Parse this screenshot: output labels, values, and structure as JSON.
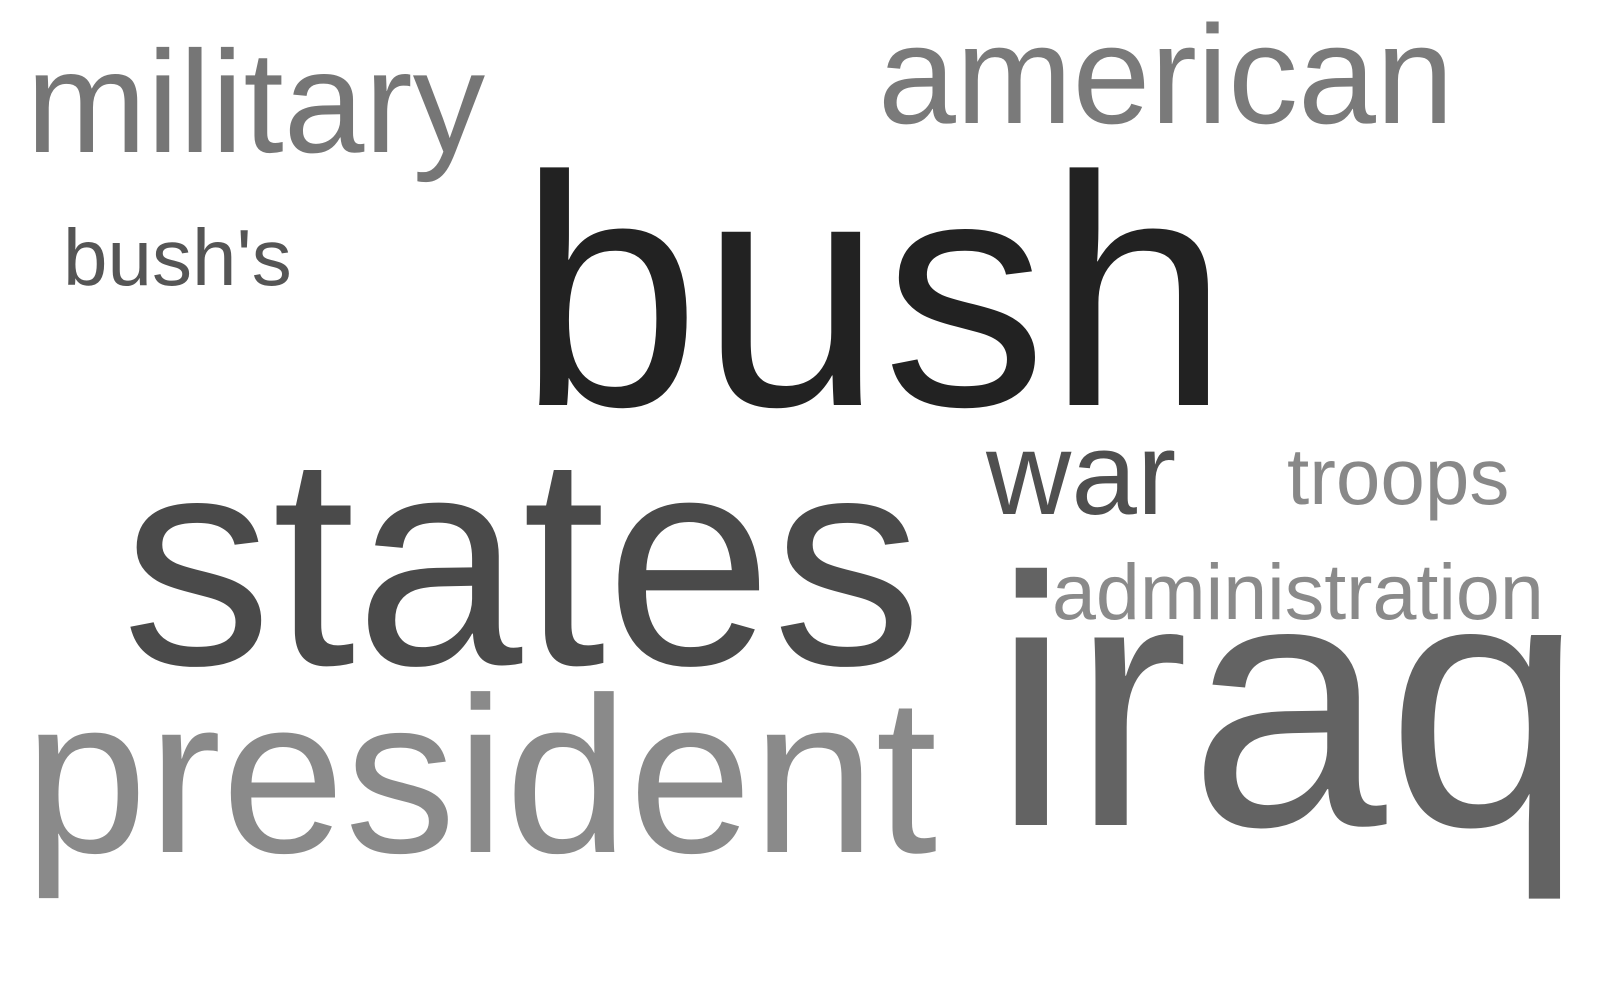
{
  "word_cloud": {
    "words": [
      {
        "text": "bush",
        "weight": 1.0,
        "color": "#222222"
      },
      {
        "text": "states",
        "weight": 0.8,
        "color": "#4a4a4a"
      },
      {
        "text": "iraq",
        "weight": 0.72,
        "color": "#636363"
      },
      {
        "text": "president",
        "weight": 0.58,
        "color": "#8a8a8a"
      },
      {
        "text": "military",
        "weight": 0.42,
        "color": "#767676"
      },
      {
        "text": "american",
        "weight": 0.4,
        "color": "#7a7a7a"
      },
      {
        "text": "war",
        "weight": 0.36,
        "color": "#4f4f4f"
      },
      {
        "text": "bush's",
        "weight": 0.21,
        "color": "#555555"
      },
      {
        "text": "administration",
        "weight": 0.21,
        "color": "#8a8a8a"
      },
      {
        "text": "troops",
        "weight": 0.21,
        "color": "#888888"
      }
    ]
  }
}
